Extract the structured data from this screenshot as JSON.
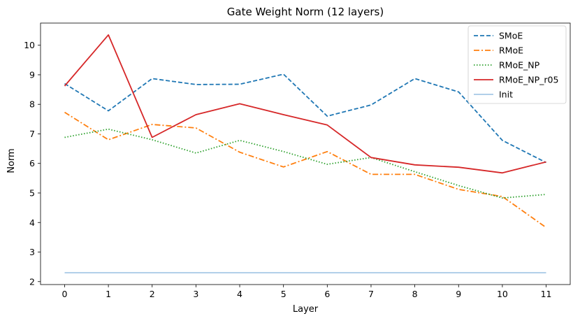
{
  "chart_data": {
    "type": "line",
    "title": "Gate Weight Norm (12 layers)",
    "xlabel": "Layer",
    "ylabel": "Norm",
    "x": [
      0,
      1,
      2,
      3,
      4,
      5,
      6,
      7,
      8,
      9,
      10,
      11
    ],
    "xticks": [
      "0",
      "1",
      "2",
      "3",
      "4",
      "5",
      "6",
      "7",
      "8",
      "9",
      "10",
      "11"
    ],
    "yticks": [
      "2",
      "3",
      "4",
      "5",
      "6",
      "7",
      "8",
      "9",
      "10"
    ],
    "xlim": [
      -0.55,
      11.55
    ],
    "ylim": [
      1.9,
      10.75
    ],
    "grid": false,
    "legend_position": "top-right",
    "series": [
      {
        "name": "SMoE",
        "color": "#1f77b4",
        "style": "dashed",
        "values": [
          8.7,
          7.78,
          8.87,
          8.67,
          8.68,
          9.02,
          7.6,
          7.98,
          8.87,
          8.42,
          6.78,
          6.03
        ]
      },
      {
        "name": "RMoE",
        "color": "#ff7f0e",
        "style": "dashdot",
        "values": [
          7.73,
          6.8,
          7.32,
          7.2,
          6.38,
          5.88,
          6.4,
          5.63,
          5.63,
          5.12,
          4.88,
          3.83
        ]
      },
      {
        "name": "RMoE_NP",
        "color": "#2ca02c",
        "style": "dotted",
        "values": [
          6.88,
          7.16,
          6.8,
          6.35,
          6.78,
          6.4,
          5.97,
          6.2,
          5.72,
          5.25,
          4.83,
          4.95
        ]
      },
      {
        "name": "RMoE_NP_r05",
        "color": "#d62728",
        "style": "solid",
        "values": [
          8.62,
          10.35,
          6.88,
          7.65,
          8.02,
          7.65,
          7.3,
          6.2,
          5.95,
          5.87,
          5.68,
          6.05
        ]
      },
      {
        "name": "Init",
        "color": "#a6c8e6",
        "style": "solid",
        "values": [
          2.3,
          2.3,
          2.3,
          2.3,
          2.3,
          2.3,
          2.3,
          2.3,
          2.3,
          2.3,
          2.3,
          2.3
        ]
      }
    ]
  }
}
